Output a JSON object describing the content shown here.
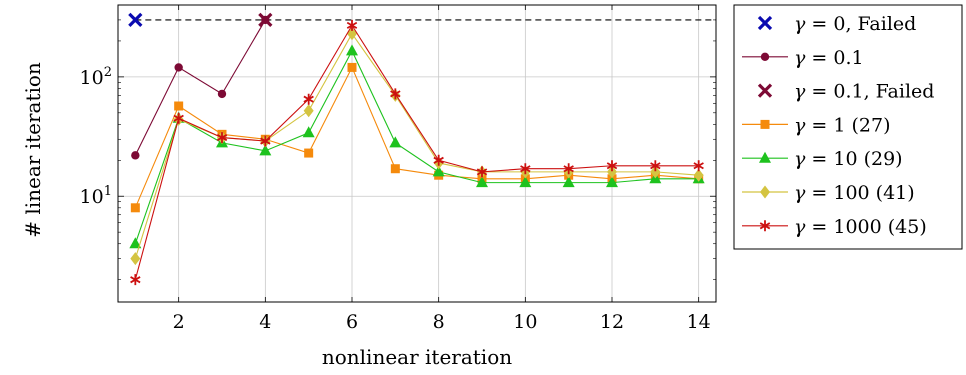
{
  "chart_data": {
    "type": "line",
    "title": "",
    "xlabel": "nonlinear iteration",
    "ylabel": "# linear iteration",
    "x_scale": "linear",
    "y_scale": "log",
    "xlim": [
      0.6,
      14.4
    ],
    "ylim": [
      1.3,
      400
    ],
    "x_ticks": [
      2,
      4,
      6,
      8,
      10,
      12,
      14
    ],
    "y_ticks": [
      {
        "value": 10,
        "label": "10",
        "exp": "1"
      },
      {
        "value": 100,
        "label": "10",
        "exp": "2"
      }
    ],
    "grid": true,
    "legend_position": "outside-right",
    "failure_line": {
      "y": 300
    },
    "series": [
      {
        "name": "γ = 0, Failed",
        "color": "#0b0bb0",
        "marker": "x",
        "line": false,
        "x": [
          1
        ],
        "y": [
          300
        ]
      },
      {
        "name": "γ = 0.1",
        "color": "#7d0a35",
        "marker": "circle",
        "line": true,
        "x": [
          1,
          2,
          3,
          4
        ],
        "y": [
          22,
          120,
          72,
          300
        ]
      },
      {
        "name": "γ = 0.1, Failed",
        "color": "#7d0a35",
        "marker": "x",
        "line": false,
        "x": [
          4
        ],
        "y": [
          300
        ]
      },
      {
        "name": "γ = 1 (27)",
        "color": "#f58a0c",
        "marker": "square",
        "line": true,
        "x": [
          1,
          2,
          3,
          4,
          5,
          6,
          7,
          8,
          9,
          10,
          11,
          12,
          13,
          14
        ],
        "y": [
          8,
          57,
          33,
          30,
          23,
          120,
          17,
          15,
          14,
          14,
          15,
          14,
          15,
          14
        ]
      },
      {
        "name": "γ = 10 (29)",
        "color": "#1ec21e",
        "marker": "triangle",
        "line": true,
        "x": [
          1,
          2,
          3,
          4,
          5,
          6,
          7,
          8,
          9,
          10,
          11,
          12,
          13,
          14
        ],
        "y": [
          4,
          45,
          28,
          24,
          34,
          165,
          28,
          16,
          13,
          13,
          13,
          13,
          14,
          14
        ]
      },
      {
        "name": "γ = 100 (41)",
        "color": "#d4c441",
        "marker": "diamond",
        "line": true,
        "x": [
          1,
          2,
          3,
          4,
          5,
          6,
          7,
          8,
          9,
          10,
          11,
          12,
          13,
          14
        ],
        "y": [
          3,
          44,
          31,
          29,
          52,
          230,
          70,
          19,
          16,
          16,
          16,
          16,
          16,
          15
        ]
      },
      {
        "name": "γ = 1000 (45)",
        "color": "#cc1010",
        "marker": "star",
        "line": true,
        "x": [
          1,
          2,
          3,
          4,
          5,
          6,
          7,
          8,
          9,
          10,
          11,
          12,
          13,
          14
        ],
        "y": [
          2,
          45,
          31,
          29,
          65,
          270,
          72,
          20,
          16,
          17,
          17,
          18,
          18,
          18
        ]
      }
    ],
    "legend_entries": [
      {
        "pre": "γ = 0, Failed",
        "post": ""
      },
      {
        "pre": "γ = 0.1",
        "post": ""
      },
      {
        "pre": "γ = 0.1, Failed",
        "post": ""
      },
      {
        "pre": "γ = 1 (27)",
        "post": ""
      },
      {
        "pre": "γ = 10 (29)",
        "post": ""
      },
      {
        "pre": "γ = 100 (41)",
        "post": ""
      },
      {
        "pre": "γ = 1000 (45)",
        "post": ""
      }
    ]
  }
}
